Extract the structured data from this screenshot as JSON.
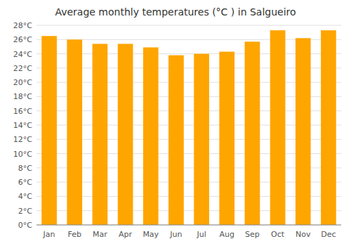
{
  "chart_data": {
    "type": "bar",
    "title": "Average monthly temperatures (°C ) in Salgueiro",
    "categories": [
      "Jan",
      "Feb",
      "Mar",
      "Apr",
      "May",
      "Jun",
      "Jul",
      "Aug",
      "Sep",
      "Oct",
      "Nov",
      "Dec"
    ],
    "values": [
      26.5,
      26.0,
      25.4,
      25.4,
      24.9,
      23.8,
      24.0,
      24.3,
      25.7,
      27.3,
      26.2,
      27.3
    ],
    "color": "#FFA500",
    "ylim": [
      0,
      28
    ],
    "yticks": [
      {
        "value": 0,
        "label": "0°C"
      },
      {
        "value": 2,
        "label": "2°C"
      },
      {
        "value": 4,
        "label": "4°C"
      },
      {
        "value": 6,
        "label": "6°C"
      },
      {
        "value": 8,
        "label": "8°C"
      },
      {
        "value": 10,
        "label": "10°C"
      },
      {
        "value": 12,
        "label": "12°C"
      },
      {
        "value": 14,
        "label": "14°C"
      },
      {
        "value": 16,
        "label": "16°C"
      },
      {
        "value": 18,
        "label": "18°C"
      },
      {
        "value": 20,
        "label": "20°C"
      },
      {
        "value": 22,
        "label": "22°C"
      },
      {
        "value": 24,
        "label": "24°C"
      },
      {
        "value": 26,
        "label": "26°C"
      },
      {
        "value": 28,
        "label": "28°C"
      }
    ],
    "grid": true
  }
}
